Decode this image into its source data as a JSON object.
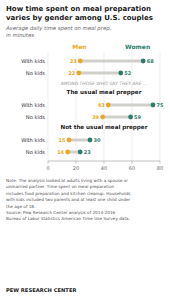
{
  "chart_data": {
    "type": "dumbbell",
    "title": "How time spent on meal preparation\nvaries by gender among U.S. couples",
    "subtitle": "Average daily time spent on meal prep,\nin minutes",
    "categories": [
      "With kids",
      "No kids",
      "With kids",
      "No kids",
      "With kids",
      "No kids"
    ],
    "series": [
      {
        "name": "Men",
        "color": "#e8a825",
        "values": [
          23,
          22,
          43,
          39,
          15,
          14
        ]
      },
      {
        "name": "Women",
        "color": "#2d7d6e",
        "values": [
          68,
          52,
          75,
          59,
          30,
          23
        ]
      }
    ],
    "color": "#d0cfc9",
    "annotations": [
      "AMONG THOSE WHO SAY THEY ARE ...",
      "The usual meal prepper",
      "Not the usual meal prepper"
    ],
    "note": "Note: The analysis looked at adults living with a spouse or\nunmarried partner. Time spent on meal preparation\nincludes food preparation and kitchen cleanup. Households\nwith kids included two parents and at least one child under\nthe age of 18.\nSource: Pew Research Center analysis of 2014-2016\nBureau of Labor Statistics American Time Use Survey data.",
    "footer": "PEW RESEARCH CENTER",
    "xlim": [
      0,
      80
    ],
    "xticks": [
      0,
      20,
      40,
      60,
      80
    ],
    "grid": true,
    "data_labels": true
  }
}
